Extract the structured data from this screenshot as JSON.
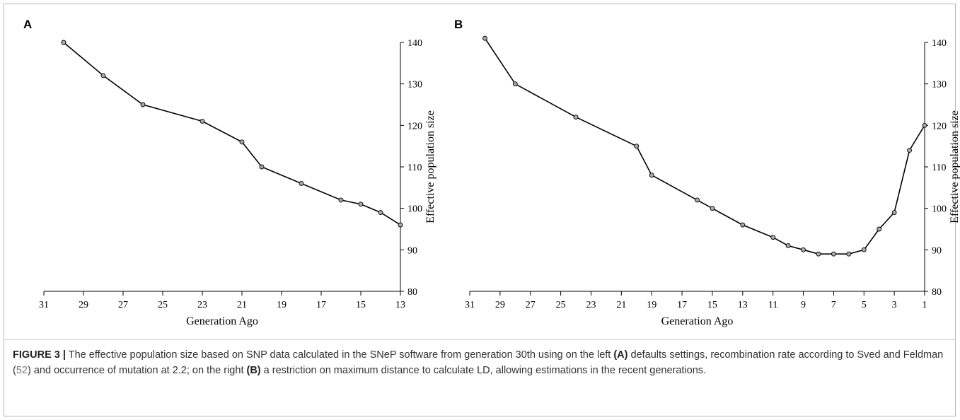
{
  "chart_data": [
    {
      "panel": "A",
      "type": "line",
      "xlabel": "Generation Ago",
      "ylabel": "Effective population size",
      "xlim": [
        31,
        13
      ],
      "ylim": [
        80,
        140
      ],
      "xticks": [
        31,
        29,
        27,
        25,
        23,
        21,
        19,
        17,
        15,
        13
      ],
      "yticks": [
        80,
        90,
        100,
        110,
        120,
        130,
        140
      ],
      "y_axis_side": "right",
      "grid": false,
      "x": [
        30,
        28,
        26,
        23,
        21,
        20,
        18,
        16,
        15,
        14,
        13
      ],
      "y": [
        140,
        132,
        125,
        121,
        116,
        110,
        106,
        102,
        101,
        99,
        96
      ]
    },
    {
      "panel": "B",
      "type": "line",
      "xlabel": "Generation Ago",
      "ylabel": "Effective population size",
      "xlim": [
        31,
        1
      ],
      "ylim": [
        80,
        140
      ],
      "xticks": [
        31,
        29,
        27,
        25,
        23,
        21,
        19,
        17,
        15,
        13,
        11,
        9,
        7,
        5,
        3,
        1
      ],
      "yticks": [
        80,
        90,
        100,
        110,
        120,
        130,
        140
      ],
      "y_axis_side": "right",
      "grid": false,
      "x": [
        30,
        28,
        24,
        20,
        19,
        16,
        15,
        13,
        11,
        10,
        9,
        8,
        7,
        6,
        5,
        4,
        3,
        2,
        1
      ],
      "y": [
        141,
        130,
        122,
        115,
        108,
        102,
        100,
        96,
        93,
        91,
        90,
        89,
        89,
        89,
        90,
        95,
        99,
        114,
        120
      ]
    }
  ],
  "caption": {
    "label": "FIGURE 3 |",
    "t1": " The effective population size based on SNP data calculated in the SNeP software from generation 30th using on the left ",
    "bA": "(A)",
    "t2": " defaults settings, recombination rate according to Sved and Feldman (",
    "ref": "52",
    "t3": ") and occurrence of mutation at 2.2; on the right ",
    "bB": "(B)",
    "t4": " a restriction on maximum distance to calculate LD, allowing estimations in the recent generations."
  }
}
